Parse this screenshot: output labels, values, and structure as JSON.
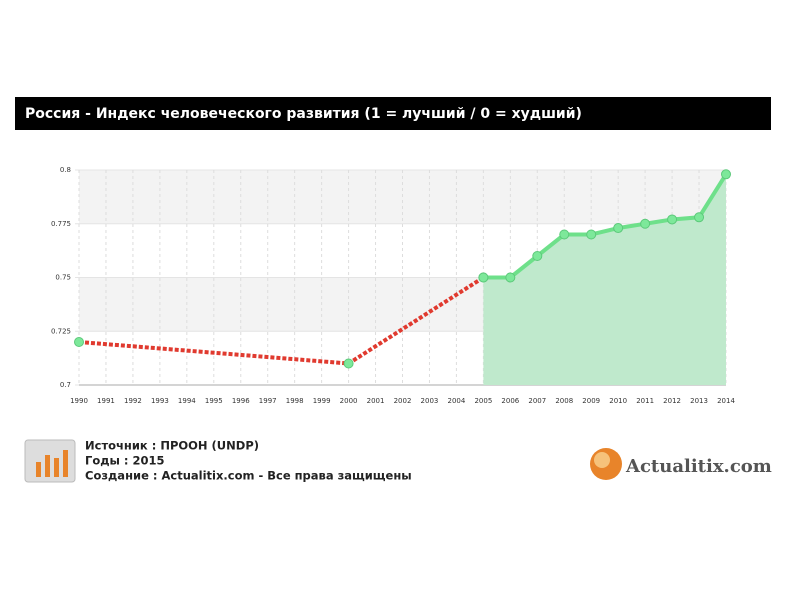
{
  "chart_data": {
    "type": "line",
    "title": "Россия - Индекс человеческого развития (1 = лучший / 0 =   худший)",
    "xlim": [
      1990,
      2014
    ],
    "xticks": [
      1990,
      1991,
      1992,
      1993,
      1994,
      1995,
      1996,
      1997,
      1998,
      1999,
      2000,
      2001,
      2002,
      2003,
      2004,
      2005,
      2006,
      2007,
      2008,
      2009,
      2010,
      2011,
      2012,
      2013,
      2014
    ],
    "ylim": [
      0.7,
      0.8
    ],
    "yticks": [
      0.7,
      0.725,
      0.75,
      0.775,
      0.8
    ],
    "grid": true,
    "series": [
      {
        "color": "#e03a2f",
        "style": "dashed",
        "x": [
          1990,
          2000,
          2005
        ],
        "values": [
          0.72,
          0.71,
          0.75
        ]
      },
      {
        "color": "#6ee08a",
        "fill": "#bfe9cc",
        "x": [
          2005,
          2006,
          2007,
          2008,
          2009,
          2010,
          2011,
          2012,
          2013,
          2014
        ],
        "values": [
          0.75,
          0.75,
          0.76,
          0.77,
          0.77,
          0.773,
          0.775,
          0.777,
          0.778,
          0.798
        ]
      }
    ]
  },
  "footer": {
    "source": "Источник : ПРООН (UNDP)",
    "years": "Годы : 2015",
    "credit": "Создание : Actualitix.com -  Все права защищены",
    "logo": "Actualitix.com"
  }
}
